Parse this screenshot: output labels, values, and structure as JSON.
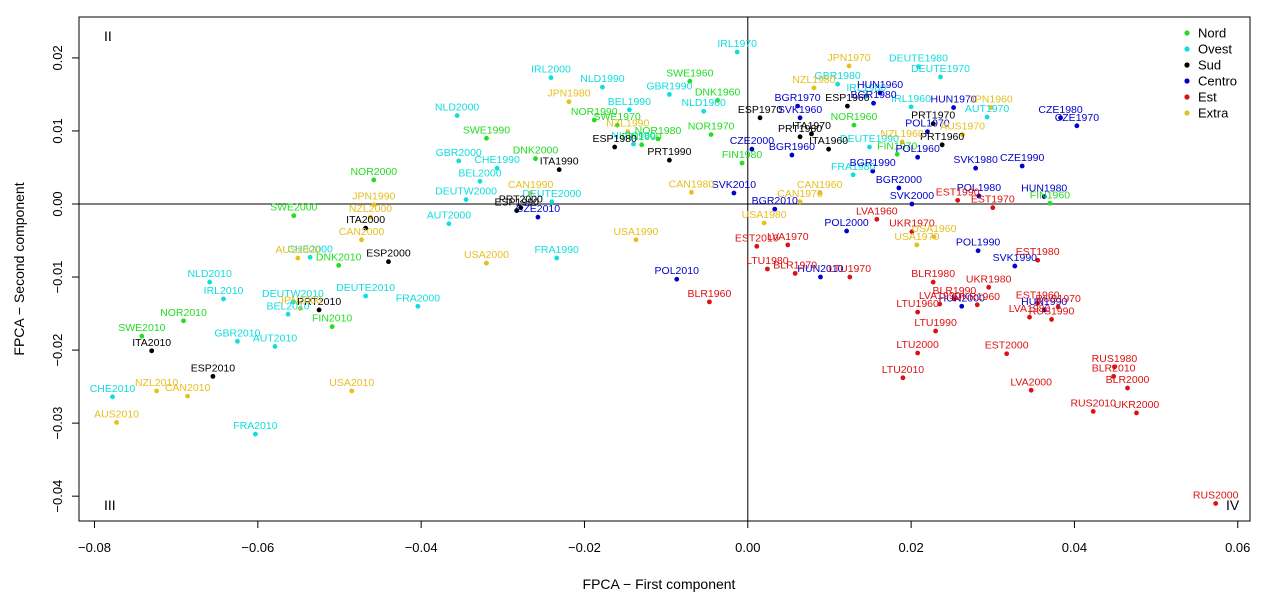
{
  "chart_data": {
    "type": "scatter",
    "xlabel": "FPCA − First component",
    "ylabel": "FPCA − Second component",
    "xlim": [
      -0.0819,
      0.0615
    ],
    "ylim": [
      -0.0434,
      0.0256
    ],
    "grid": false,
    "legend_position": "top-right",
    "reference_lines": {
      "x": 0,
      "y": 0
    },
    "quadrants": {
      "top_left": "II",
      "bottom_left": "III",
      "bottom_right": "IV"
    },
    "x_ticks": [
      {
        "value": -0.08,
        "label": "−0.08"
      },
      {
        "value": -0.06,
        "label": "−0.06"
      },
      {
        "value": -0.04,
        "label": "−0.04"
      },
      {
        "value": -0.02,
        "label": "−0.02"
      },
      {
        "value": 0.0,
        "label": "0.00"
      },
      {
        "value": 0.02,
        "label": "0.02"
      },
      {
        "value": 0.04,
        "label": "0.04"
      },
      {
        "value": 0.06,
        "label": "0.06"
      }
    ],
    "y_ticks": [
      {
        "value": -0.04,
        "label": "−0.04"
      },
      {
        "value": -0.03,
        "label": "−0.03"
      },
      {
        "value": -0.02,
        "label": "−0.02"
      },
      {
        "value": -0.01,
        "label": "−0.01"
      },
      {
        "value": 0.0,
        "label": "0.00"
      },
      {
        "value": 0.01,
        "label": "0.01"
      },
      {
        "value": 0.02,
        "label": "0.02"
      }
    ],
    "series": [
      {
        "name": "Nord",
        "color": "#22dd22",
        "points": [
          {
            "label": "SWE1960",
            "x": -0.0071,
            "y": 0.0168
          },
          {
            "label": "DNK1960",
            "x": -0.0037,
            "y": 0.0142
          },
          {
            "label": "NOR1990",
            "x": -0.0188,
            "y": 0.0115
          },
          {
            "label": "SWE1970",
            "x": -0.016,
            "y": 0.0108
          },
          {
            "label": "NOR1980",
            "x": -0.011,
            "y": 0.0089
          },
          {
            "label": "FIN1990",
            "x": -0.013,
            "y": 0.0081
          },
          {
            "label": "NOR1970",
            "x": -0.0045,
            "y": 0.0095
          },
          {
            "label": "FIN1980",
            "x": -0.0007,
            "y": 0.0056
          },
          {
            "label": "NOR1960",
            "x": 0.013,
            "y": 0.0108
          },
          {
            "label": "FIN1970",
            "x": 0.0183,
            "y": 0.0068
          },
          {
            "label": "FIN1960",
            "x": 0.037,
            "y": 0.0001
          },
          {
            "label": "SWE1990",
            "x": -0.032,
            "y": 0.009
          },
          {
            "label": "DNK2000",
            "x": -0.026,
            "y": 0.0062
          },
          {
            "label": "NOR2000",
            "x": -0.0458,
            "y": 0.0033
          },
          {
            "label": "SWE2000",
            "x": -0.0556,
            "y": -0.0016
          },
          {
            "label": "DNK2010",
            "x": -0.0501,
            "y": -0.0084
          },
          {
            "label": "FIN2010",
            "x": -0.0509,
            "y": -0.0168
          },
          {
            "label": "NOR2010",
            "x": -0.0691,
            "y": -0.016
          },
          {
            "label": "SWE2010",
            "x": -0.0742,
            "y": -0.0181
          }
        ]
      },
      {
        "name": "Ovest",
        "color": "#11dddd",
        "points": [
          {
            "label": "IRL1970",
            "x": -0.0013,
            "y": 0.0208
          },
          {
            "label": "IRL2000",
            "x": -0.0241,
            "y": 0.0173
          },
          {
            "label": "NLD1990",
            "x": -0.0178,
            "y": 0.016
          },
          {
            "label": "GBR1990",
            "x": -0.0096,
            "y": 0.015
          },
          {
            "label": "BEL1990",
            "x": -0.0145,
            "y": 0.0129
          },
          {
            "label": "NLD1960",
            "x": -0.0054,
            "y": 0.0127
          },
          {
            "label": "NLD1980",
            "x": -0.014,
            "y": 0.0082
          },
          {
            "label": "NLD2000",
            "x": -0.0356,
            "y": 0.0121
          },
          {
            "label": "GBR2000",
            "x": -0.0354,
            "y": 0.0059
          },
          {
            "label": "CHE1990",
            "x": -0.0307,
            "y": 0.0049
          },
          {
            "label": "BEL2000",
            "x": -0.0328,
            "y": 0.0031
          },
          {
            "label": "DEUTW2000",
            "x": -0.0345,
            "y": 0.0006
          },
          {
            "label": "DEUTE2000",
            "x": -0.024,
            "y": 0.0003
          },
          {
            "label": "AUT2000",
            "x": -0.0366,
            "y": -0.0027
          },
          {
            "label": "FRA1990",
            "x": -0.0234,
            "y": -0.0074
          },
          {
            "label": "CHE2000",
            "x": -0.0536,
            "y": -0.0073
          },
          {
            "label": "NLD2010",
            "x": -0.0659,
            "y": -0.0107
          },
          {
            "label": "IRL2010",
            "x": -0.0642,
            "y": -0.013
          },
          {
            "label": "DEUTW2010",
            "x": -0.0557,
            "y": -0.0134
          },
          {
            "label": "BEL2010",
            "x": -0.0563,
            "y": -0.0151
          },
          {
            "label": "DEUTE2010",
            "x": -0.0468,
            "y": -0.0126
          },
          {
            "label": "FRA2000",
            "x": -0.0404,
            "y": -0.014
          },
          {
            "label": "GBR2010",
            "x": -0.0625,
            "y": -0.0188
          },
          {
            "label": "AUT2010",
            "x": -0.0579,
            "y": -0.0195
          },
          {
            "label": "CHE2010",
            "x": -0.0778,
            "y": -0.0264
          },
          {
            "label": "FRA2010",
            "x": -0.0603,
            "y": -0.0315
          },
          {
            "label": "DEUTE1980",
            "x": 0.0209,
            "y": 0.0188
          },
          {
            "label": "DEUTE1970",
            "x": 0.0236,
            "y": 0.0174
          },
          {
            "label": "GBR1980",
            "x": 0.011,
            "y": 0.0164
          },
          {
            "label": "IRL1980",
            "x": 0.0145,
            "y": 0.0148
          },
          {
            "label": "IRL1960",
            "x": 0.02,
            "y": 0.0133
          },
          {
            "label": "AUT1970",
            "x": 0.0293,
            "y": 0.0119
          },
          {
            "label": "DEUTE1990",
            "x": 0.0149,
            "y": 0.0078
          },
          {
            "label": "FRA1980",
            "x": 0.0129,
            "y": 0.004
          }
        ]
      },
      {
        "name": "Sud",
        "color": "#000000",
        "points": [
          {
            "label": "ESP1970",
            "x": 0.0015,
            "y": 0.0118
          },
          {
            "label": "ESP1960",
            "x": 0.0122,
            "y": 0.0134
          },
          {
            "label": "PRT1970",
            "x": 0.0227,
            "y": 0.011
          },
          {
            "label": "PRT1980",
            "x": 0.0064,
            "y": 0.0092
          },
          {
            "label": "ITA1970",
            "x": 0.0078,
            "y": 0.0096
          },
          {
            "label": "ITA1960",
            "x": 0.0099,
            "y": 0.0075
          },
          {
            "label": "PRT1960",
            "x": 0.0238,
            "y": 0.0081
          },
          {
            "label": "ESP1980",
            "x": -0.0163,
            "y": 0.0078
          },
          {
            "label": "PRT1990",
            "x": -0.0096,
            "y": 0.006
          },
          {
            "label": "ITA1990",
            "x": -0.0231,
            "y": 0.0047
          },
          {
            "label": "PRT2000",
            "x": -0.0278,
            "y": -0.0005
          },
          {
            "label": "ESP1990",
            "x": -0.0283,
            "y": -0.0009
          },
          {
            "label": "ITA2000",
            "x": -0.0468,
            "y": -0.0033
          },
          {
            "label": "ESP2000",
            "x": -0.044,
            "y": -0.0079
          },
          {
            "label": "PRT2010",
            "x": -0.0525,
            "y": -0.0145
          },
          {
            "label": "ITA2010",
            "x": -0.073,
            "y": -0.0201
          },
          {
            "label": "ESP2010",
            "x": -0.0655,
            "y": -0.0236
          }
        ]
      },
      {
        "name": "Centro",
        "color": "#0000cc",
        "points": [
          {
            "label": "HUN1960",
            "x": 0.0162,
            "y": 0.0152
          },
          {
            "label": "BGR1980",
            "x": 0.0154,
            "y": 0.0138
          },
          {
            "label": "BGR1970",
            "x": 0.0061,
            "y": 0.0134
          },
          {
            "label": "HUN1970",
            "x": 0.0252,
            "y": 0.0132
          },
          {
            "label": "SVK1960",
            "x": 0.0064,
            "y": 0.0118
          },
          {
            "label": "POL1970",
            "x": 0.022,
            "y": 0.0099
          },
          {
            "label": "CZE1980",
            "x": 0.0383,
            "y": 0.0118
          },
          {
            "label": "CZE1970",
            "x": 0.0403,
            "y": 0.0107
          },
          {
            "label": "POL1960",
            "x": 0.0208,
            "y": 0.0064
          },
          {
            "label": "BGR1960",
            "x": 0.0054,
            "y": 0.0067
          },
          {
            "label": "CZE2000",
            "x": 0.0005,
            "y": 0.0075
          },
          {
            "label": "BGR1990",
            "x": 0.0153,
            "y": 0.0045
          },
          {
            "label": "SVK1980",
            "x": 0.0279,
            "y": 0.0049
          },
          {
            "label": "CZE1990",
            "x": 0.0336,
            "y": 0.0052
          },
          {
            "label": "BGR2000",
            "x": 0.0185,
            "y": 0.0022
          },
          {
            "label": "POL1980",
            "x": 0.0283,
            "y": 0.0011
          },
          {
            "label": "HUN1980",
            "x": 0.0363,
            "y": 0.001
          },
          {
            "label": "SVK2010",
            "x": -0.0017,
            "y": 0.0015
          },
          {
            "label": "BGR2010",
            "x": 0.0033,
            "y": -0.0007
          },
          {
            "label": "SVK2000",
            "x": 0.0201,
            "y": 0.0
          },
          {
            "label": "CZE2010",
            "x": -0.0257,
            "y": -0.0018
          },
          {
            "label": "POL2000",
            "x": 0.0121,
            "y": -0.0037
          },
          {
            "label": "POL1990",
            "x": 0.0282,
            "y": -0.0064
          },
          {
            "label": "SVK1990",
            "x": 0.0327,
            "y": -0.0085
          },
          {
            "label": "POL2010",
            "x": -0.0087,
            "y": -0.0103
          },
          {
            "label": "HUN2010",
            "x": 0.0089,
            "y": -0.01
          },
          {
            "label": "HUN2000",
            "x": 0.0262,
            "y": -0.014
          },
          {
            "label": "HUN1990",
            "x": 0.0363,
            "y": -0.0145
          }
        ]
      },
      {
        "name": "Est",
        "color": "#dd1111",
        "points": [
          {
            "label": "EST1990",
            "x": 0.0257,
            "y": 0.0005
          },
          {
            "label": "EST1970",
            "x": 0.03,
            "y": -0.0005
          },
          {
            "label": "LVA1960",
            "x": 0.0158,
            "y": -0.0021
          },
          {
            "label": "UKR1970",
            "x": 0.0201,
            "y": -0.0038
          },
          {
            "label": "EST2010",
            "x": 0.0011,
            "y": -0.0058
          },
          {
            "label": "LVA1970",
            "x": 0.0049,
            "y": -0.0056
          },
          {
            "label": "EST1980",
            "x": 0.0355,
            "y": -0.0077
          },
          {
            "label": "LTU1980",
            "x": 0.0024,
            "y": -0.0089
          },
          {
            "label": "BLR1970",
            "x": 0.0058,
            "y": -0.0095
          },
          {
            "label": "LTU1970",
            "x": 0.0125,
            "y": -0.01
          },
          {
            "label": "BLR1960",
            "x": -0.0047,
            "y": -0.0134
          },
          {
            "label": "BLR1980",
            "x": 0.0227,
            "y": -0.0107
          },
          {
            "label": "UKR1980",
            "x": 0.0295,
            "y": -0.0114
          },
          {
            "label": "BLR1990",
            "x": 0.0253,
            "y": -0.013
          },
          {
            "label": "LVA1990",
            "x": 0.0235,
            "y": -0.0137
          },
          {
            "label": "UKR1960",
            "x": 0.0281,
            "y": -0.0138
          },
          {
            "label": "EST1960",
            "x": 0.0355,
            "y": -0.0136
          },
          {
            "label": "RUS1970",
            "x": 0.038,
            "y": -0.0141
          },
          {
            "label": "LVA1980",
            "x": 0.0345,
            "y": -0.0155
          },
          {
            "label": "RUS1990",
            "x": 0.0372,
            "y": -0.0158
          },
          {
            "label": "LTU1960",
            "x": 0.0208,
            "y": -0.0148
          },
          {
            "label": "LTU1990",
            "x": 0.023,
            "y": -0.0174
          },
          {
            "label": "LTU2000",
            "x": 0.0208,
            "y": -0.0204
          },
          {
            "label": "LTU2010",
            "x": 0.019,
            "y": -0.0238
          },
          {
            "label": "EST2000",
            "x": 0.0317,
            "y": -0.0205
          },
          {
            "label": "LVA2000",
            "x": 0.0347,
            "y": -0.0255
          },
          {
            "label": "RUS1980",
            "x": 0.0449,
            "y": -0.0223
          },
          {
            "label": "BLR2010",
            "x": 0.0448,
            "y": -0.0236
          },
          {
            "label": "BLR2000",
            "x": 0.0465,
            "y": -0.0252
          },
          {
            "label": "RUS2010",
            "x": 0.0423,
            "y": -0.0284
          },
          {
            "label": "UKR2000",
            "x": 0.0476,
            "y": -0.0286
          },
          {
            "label": "RUS2000",
            "x": 0.0573,
            "y": -0.041
          }
        ]
      },
      {
        "name": "Extra",
        "color": "#e6bf1f",
        "points": [
          {
            "label": "JPN1970",
            "x": 0.0124,
            "y": 0.0189
          },
          {
            "label": "NZL1980",
            "x": 0.0081,
            "y": 0.0159
          },
          {
            "label": "JPN1960",
            "x": 0.0298,
            "y": 0.0132
          },
          {
            "label": "AUS1970",
            "x": 0.0263,
            "y": 0.0095
          },
          {
            "label": "NZL1960",
            "x": 0.0189,
            "y": 0.0085
          },
          {
            "label": "JPN1980",
            "x": -0.0219,
            "y": 0.014
          },
          {
            "label": "NZL1990",
            "x": -0.0147,
            "y": 0.0099
          },
          {
            "label": "CAN1990",
            "x": -0.0266,
            "y": 0.0015
          },
          {
            "label": "CAN1980",
            "x": -0.0069,
            "y": 0.0016
          },
          {
            "label": "CAN1970",
            "x": 0.0064,
            "y": 0.0003
          },
          {
            "label": "CAN1960",
            "x": 0.0088,
            "y": 0.0015
          },
          {
            "label": "USA1980",
            "x": 0.002,
            "y": -0.0026
          },
          {
            "label": "USA1960",
            "x": 0.0228,
            "y": -0.0045
          },
          {
            "label": "USA1970",
            "x": 0.0207,
            "y": -0.0056
          },
          {
            "label": "JPN1990",
            "x": -0.0458,
            "y": -0.0001
          },
          {
            "label": "NZL2000",
            "x": -0.0462,
            "y": -0.0018
          },
          {
            "label": "CAN2000",
            "x": -0.0473,
            "y": -0.0049
          },
          {
            "label": "USA1990",
            "x": -0.0137,
            "y": -0.0049
          },
          {
            "label": "USA2000",
            "x": -0.032,
            "y": -0.0081
          },
          {
            "label": "AUS2000",
            "x": -0.0551,
            "y": -0.0074
          },
          {
            "label": "JPN2000",
            "x": -0.0548,
            "y": -0.0143
          },
          {
            "label": "USA2010",
            "x": -0.0485,
            "y": -0.0256
          },
          {
            "label": "NZL2010",
            "x": -0.0724,
            "y": -0.0256
          },
          {
            "label": "CAN2010",
            "x": -0.0686,
            "y": -0.0263
          },
          {
            "label": "AUS2010",
            "x": -0.0773,
            "y": -0.0299
          }
        ]
      }
    ]
  }
}
